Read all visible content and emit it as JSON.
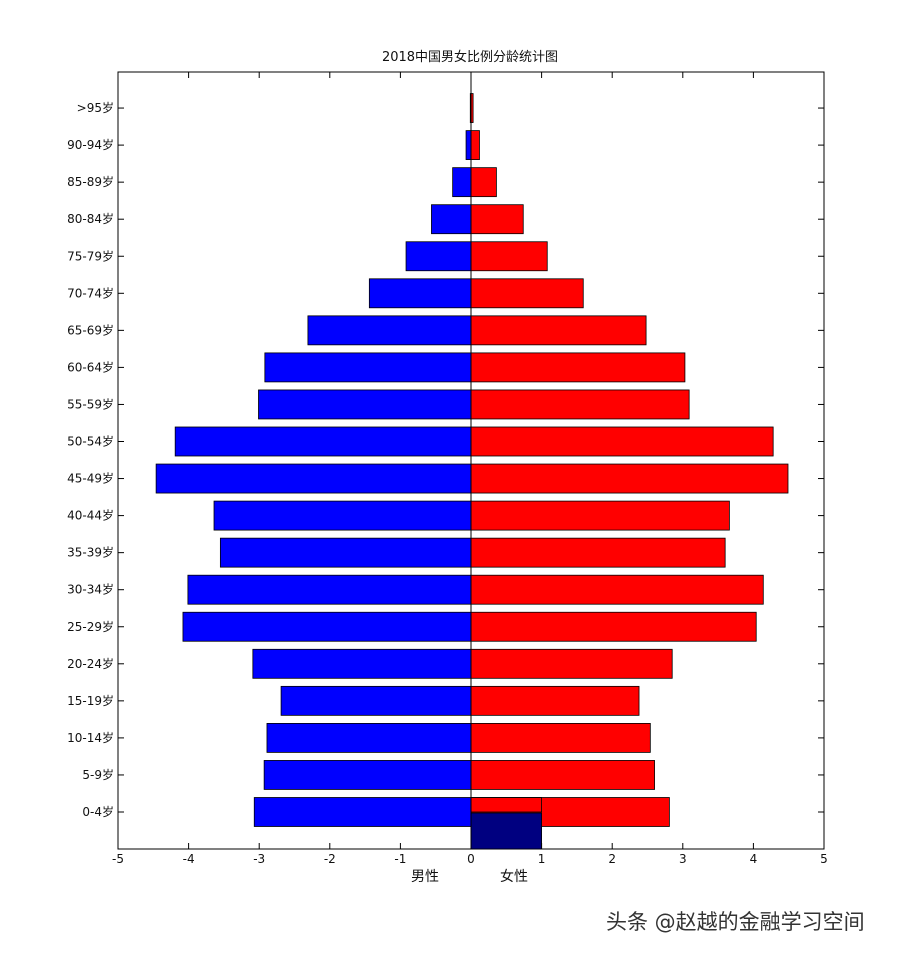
{
  "chart_data": {
    "type": "bar",
    "orientation": "horizontal",
    "title": "2018中国男女比例分龄统计图",
    "categories": [
      "0-4岁",
      "5-9岁",
      "10-14岁",
      "15-19岁",
      "20-24岁",
      "25-29岁",
      "30-34岁",
      "35-39岁",
      "40-44岁",
      "45-49岁",
      "50-54岁",
      "55-59岁",
      "60-64岁",
      "65-69岁",
      "70-74岁",
      "75-79岁",
      "80-84岁",
      "85-89岁",
      "90-94岁",
      ">95岁"
    ],
    "series": [
      {
        "name": "男性",
        "color": "#0000ff",
        "values": [
          -3.07,
          -2.93,
          -2.89,
          -2.69,
          -3.09,
          -4.08,
          -4.01,
          -3.55,
          -3.64,
          -4.46,
          -4.19,
          -3.01,
          -2.92,
          -2.31,
          -1.44,
          -0.92,
          -0.56,
          -0.26,
          -0.07,
          -0.01
        ]
      },
      {
        "name": "女性",
        "color": "#ff0000",
        "values": [
          2.81,
          2.6,
          2.54,
          2.38,
          2.85,
          4.04,
          4.14,
          3.6,
          3.66,
          4.49,
          4.28,
          3.09,
          3.03,
          2.48,
          1.59,
          1.08,
          0.74,
          0.36,
          0.12,
          0.03
        ]
      }
    ],
    "extra_bar": {
      "color": "#000080",
      "x": [
        0,
        1
      ],
      "note": "small dark-navy bar below 0-4岁 row"
    },
    "xlim": [
      -5,
      5
    ],
    "xticks": [
      -5,
      -4,
      -3,
      -2,
      -1,
      0,
      1,
      2,
      3,
      4,
      5
    ],
    "xlabel_left": "男性",
    "xlabel_right": "女性",
    "grid": false,
    "legend": "none"
  },
  "watermark": "头条 @赵越的金融学习空间"
}
